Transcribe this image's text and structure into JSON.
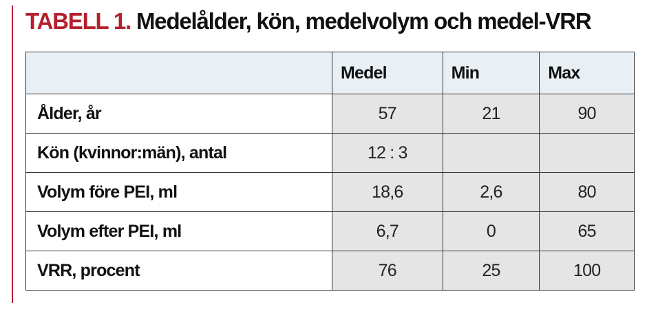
{
  "header": {
    "label": "TABELL 1.",
    "title": "Medelålder, kön, medelvolym och medel-VRR"
  },
  "table": {
    "columns": [
      "Medel",
      "Min",
      "Max"
    ],
    "rows": [
      {
        "label": "Ålder, år",
        "values": [
          "57",
          "21",
          "90"
        ]
      },
      {
        "label": "Kön (kvinnor:män), antal",
        "values": [
          "12 : 3",
          null,
          null
        ]
      },
      {
        "label": "Volym före PEI, ml",
        "values": [
          "18,6",
          "2,6",
          "80"
        ]
      },
      {
        "label": "Volym efter PEI, ml",
        "values": [
          "6,7",
          "0",
          "65"
        ]
      },
      {
        "label": "VRR, procent",
        "values": [
          "76",
          "25",
          "100"
        ]
      }
    ]
  }
}
